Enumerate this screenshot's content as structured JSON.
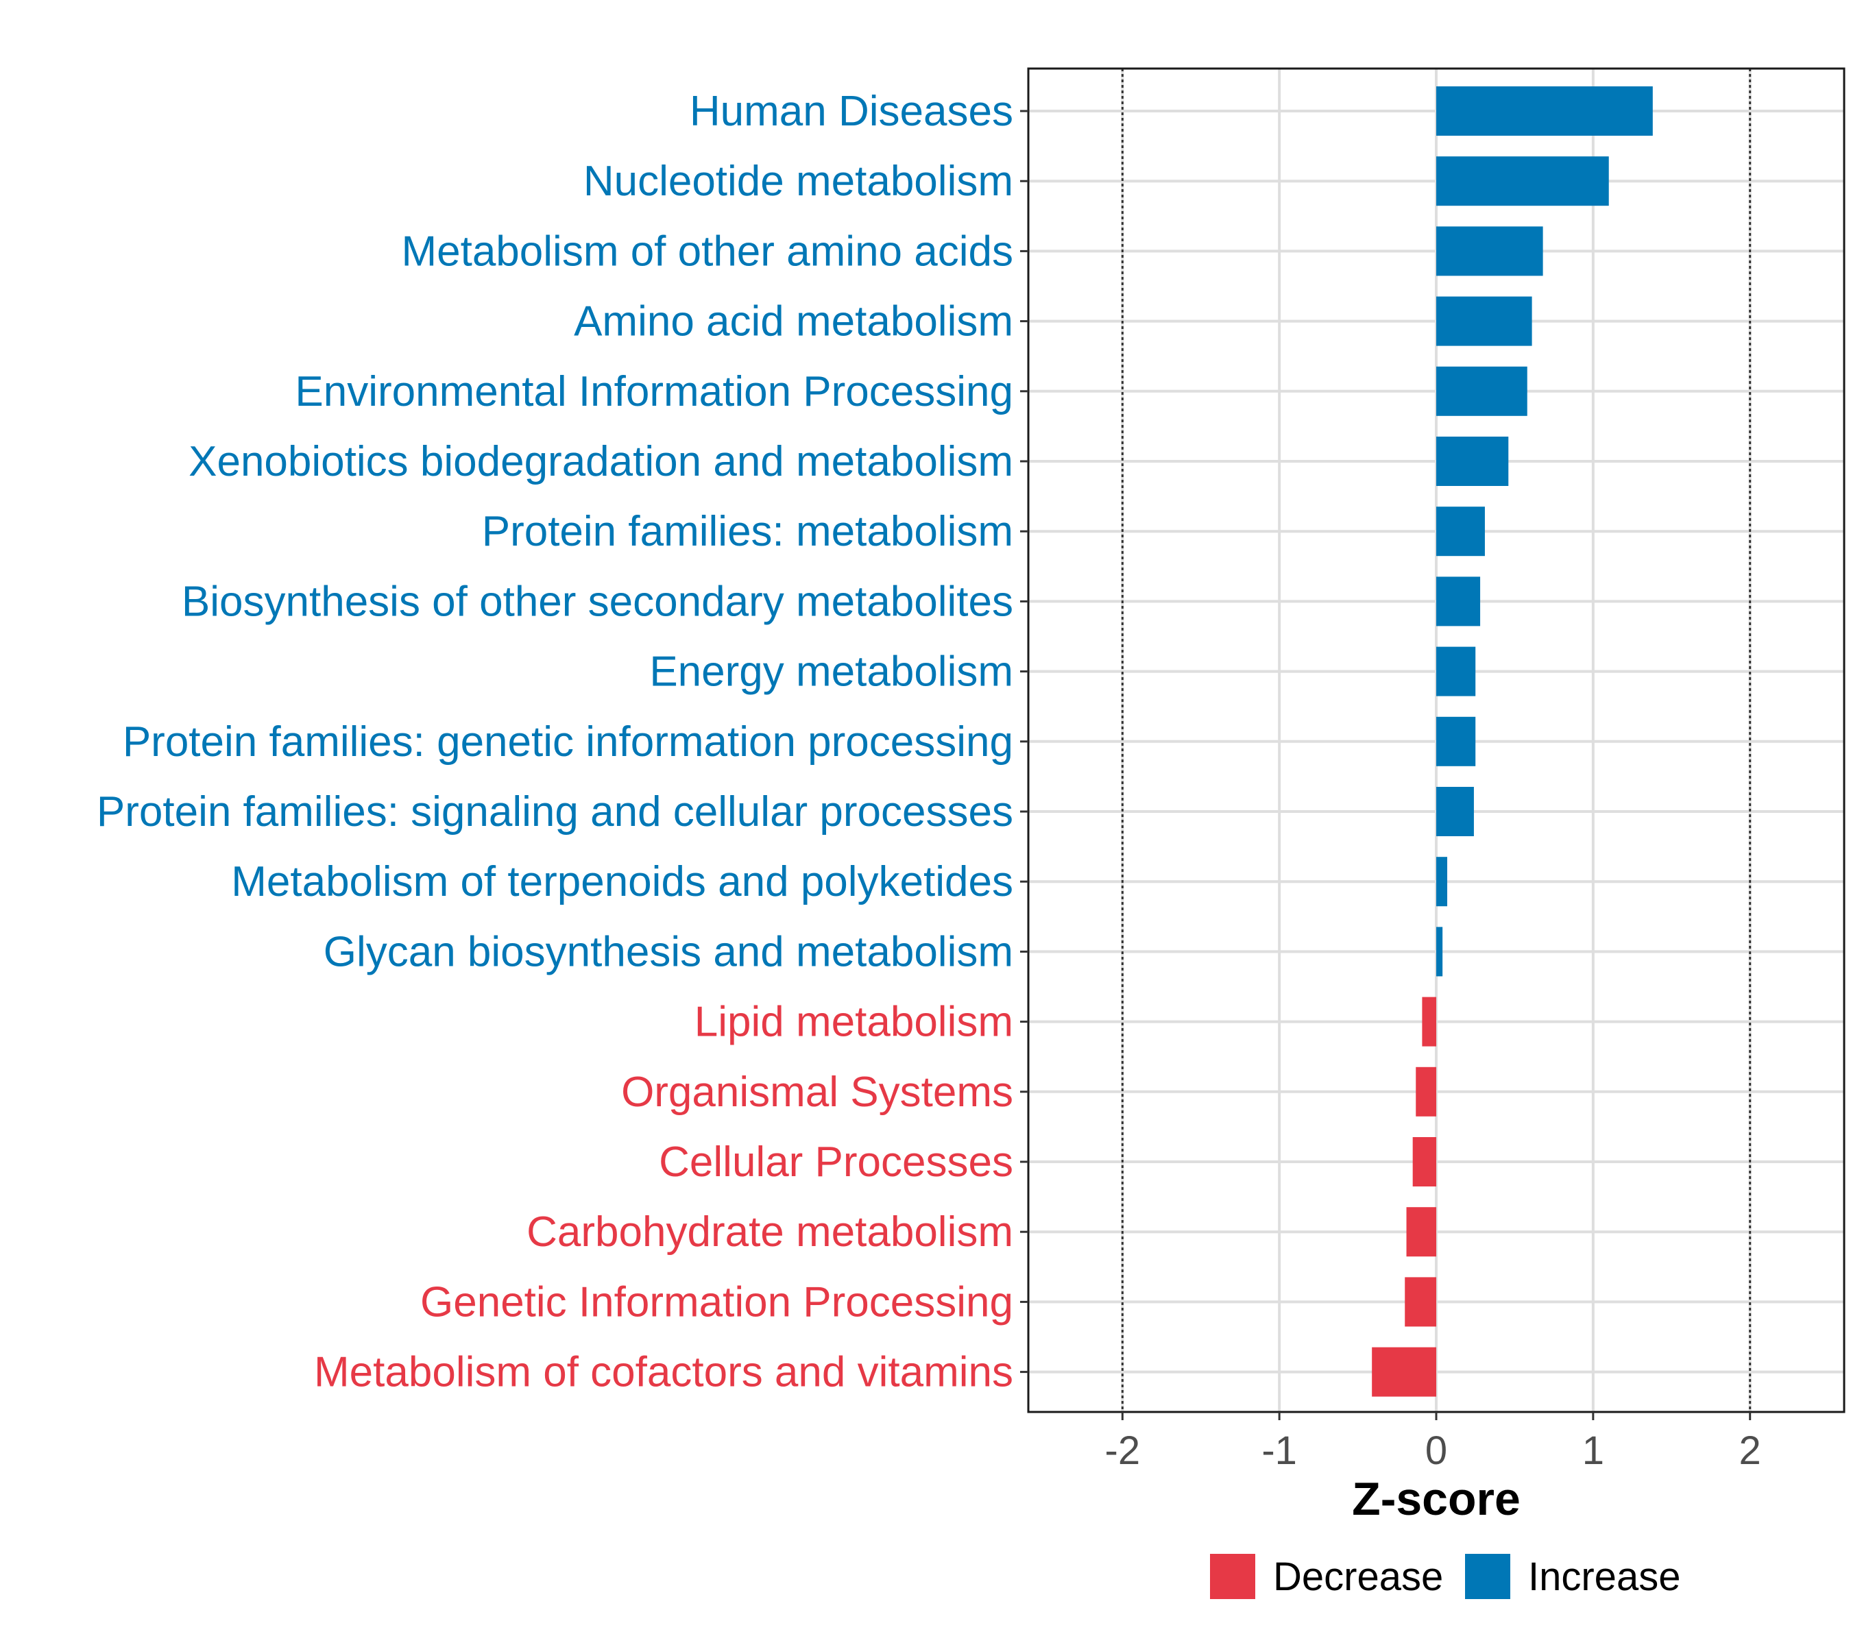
{
  "chart_data": {
    "type": "bar",
    "orientation": "horizontal",
    "title": "",
    "xlabel": "Z-score",
    "ylabel": "",
    "xlim": [
      -2.6,
      2.6
    ],
    "xticks": [
      "-2",
      "-1",
      "0",
      "1",
      "2"
    ],
    "xtick_values": [
      -2,
      -1,
      0,
      1,
      2
    ],
    "reference_lines": [
      -2,
      2
    ],
    "grid": true,
    "categories": [
      "Human Diseases",
      "Nucleotide metabolism",
      "Metabolism of other amino acids",
      "Amino acid metabolism",
      "Environmental Information Processing",
      "Xenobiotics biodegradation and metabolism",
      "Protein families: metabolism",
      "Biosynthesis of other secondary metabolites",
      "Energy metabolism",
      "Protein families: genetic information processing",
      "Protein families: signaling and cellular processes",
      "Metabolism of terpenoids and polyketides",
      "Glycan biosynthesis and metabolism",
      "Lipid metabolism",
      "Organismal Systems",
      "Cellular Processes",
      "Carbohydrate metabolism",
      "Genetic Information Processing",
      "Metabolism of cofactors and vitamins"
    ],
    "values": [
      1.38,
      1.1,
      0.68,
      0.61,
      0.58,
      0.46,
      0.31,
      0.28,
      0.25,
      0.25,
      0.24,
      0.07,
      0.04,
      -0.09,
      -0.13,
      -0.15,
      -0.19,
      -0.2,
      -0.41
    ],
    "groups": [
      "Increase",
      "Increase",
      "Increase",
      "Increase",
      "Increase",
      "Increase",
      "Increase",
      "Increase",
      "Increase",
      "Increase",
      "Increase",
      "Increase",
      "Increase",
      "Decrease",
      "Decrease",
      "Decrease",
      "Decrease",
      "Decrease",
      "Decrease"
    ],
    "legend": {
      "position": "bottom",
      "entries": [
        {
          "label": "Decrease",
          "color": "#e63946"
        },
        {
          "label": "Increase",
          "color": "#0077b6"
        }
      ]
    },
    "colors": {
      "Increase": "#0077b6",
      "Decrease": "#e63946"
    }
  }
}
